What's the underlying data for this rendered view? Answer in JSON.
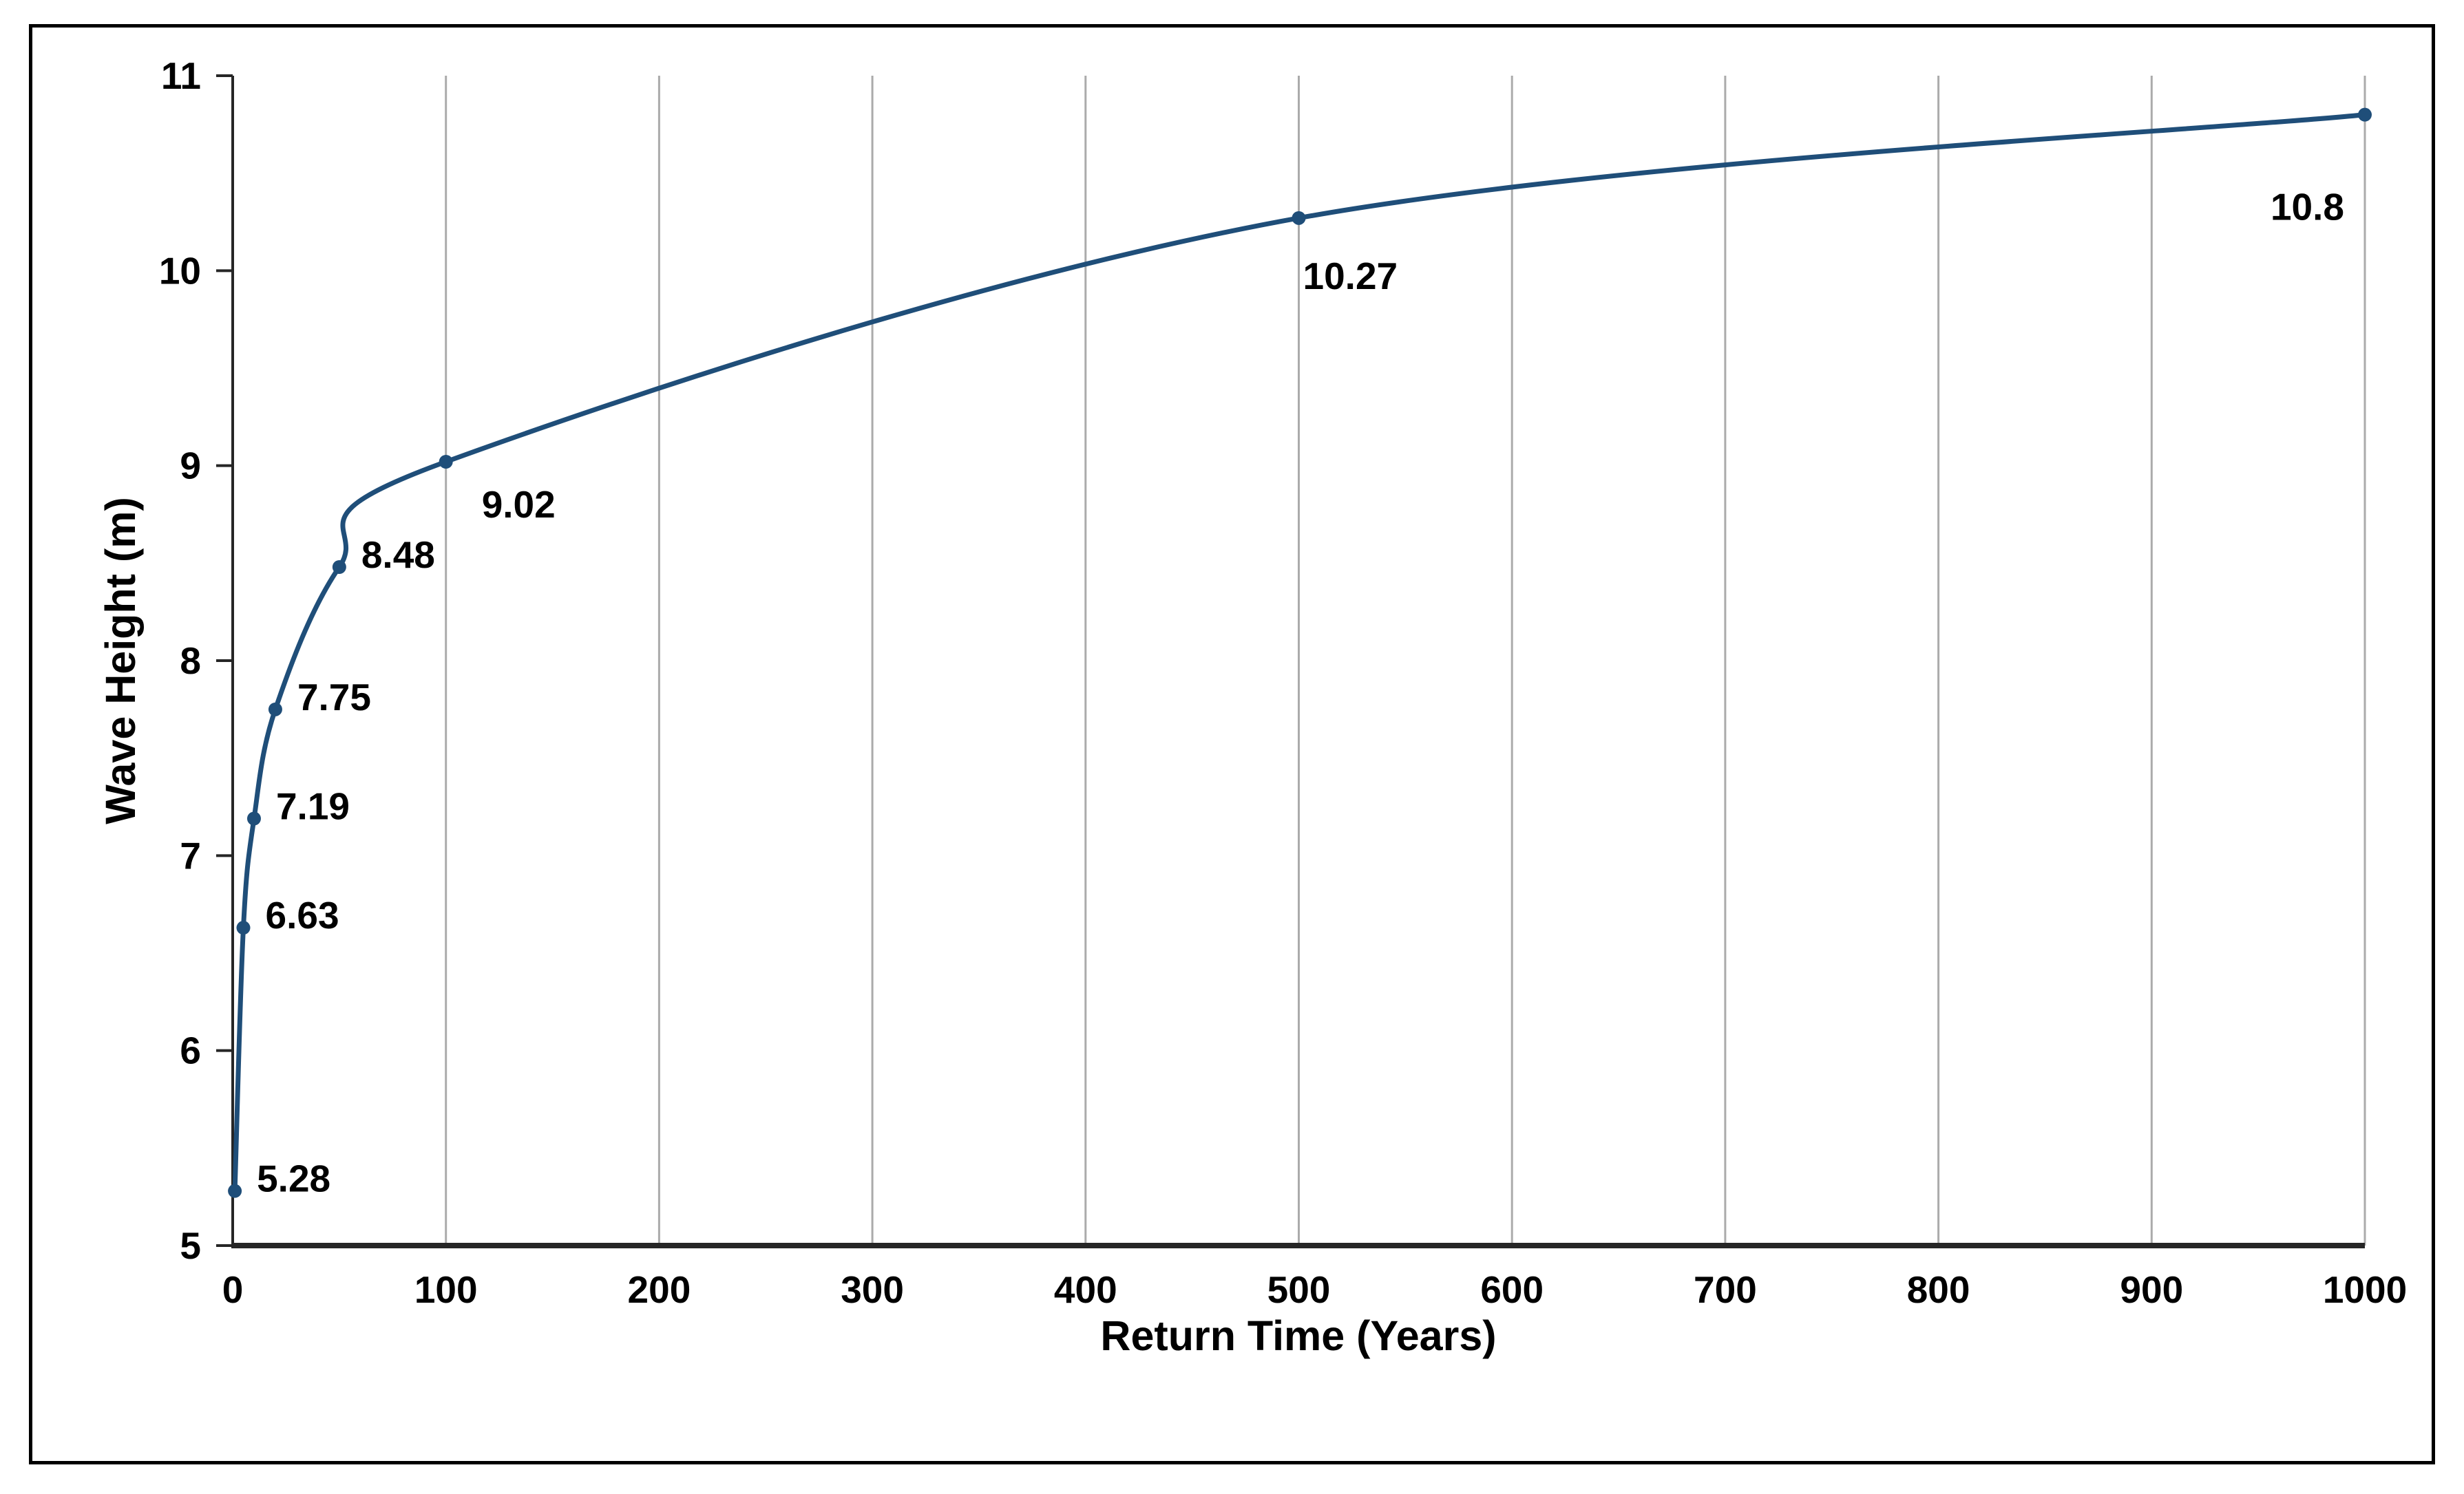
{
  "figure": {
    "background": "#FFFFFF",
    "frame_color": "#000000"
  },
  "chart_data": {
    "type": "line",
    "title": "",
    "xlabel": "Return Time (Years)",
    "ylabel": "Wave Height (m)",
    "xlim": [
      0,
      1000
    ],
    "ylim": [
      5,
      11
    ],
    "x_ticks": [
      0,
      100,
      200,
      300,
      400,
      500,
      600,
      700,
      800,
      900,
      1000
    ],
    "y_ticks": [
      5,
      6,
      7,
      8,
      9,
      10,
      11
    ],
    "grid": "vertical-only",
    "legend_position": "none",
    "colors": {
      "series": "#1F4E79",
      "gridline": "#ABABAB",
      "axis": "#262626",
      "text": "#000000"
    },
    "series": [
      {
        "name": "wave-height-return-curve",
        "color": "#1F4E79",
        "marker": "circle",
        "smooth": true,
        "points": [
          {
            "x": 1,
            "y": 5.28,
            "label": "5.28",
            "label_pos": "right"
          },
          {
            "x": 5,
            "y": 6.63,
            "label": "6.63",
            "label_pos": "right"
          },
          {
            "x": 10,
            "y": 7.19,
            "label": "7.19",
            "label_pos": "right"
          },
          {
            "x": 20,
            "y": 7.75,
            "label": "7.75",
            "label_pos": "right"
          },
          {
            "x": 50,
            "y": 8.48,
            "label": "8.48",
            "label_pos": "right"
          },
          {
            "x": 100,
            "y": 9.02,
            "label": "9.02",
            "label_pos": "below-right"
          },
          {
            "x": 500,
            "y": 10.27,
            "label": "10.27",
            "label_pos": "below"
          },
          {
            "x": 1000,
            "y": 10.8,
            "label": "10.8",
            "label_pos": "below-left"
          }
        ]
      }
    ]
  }
}
